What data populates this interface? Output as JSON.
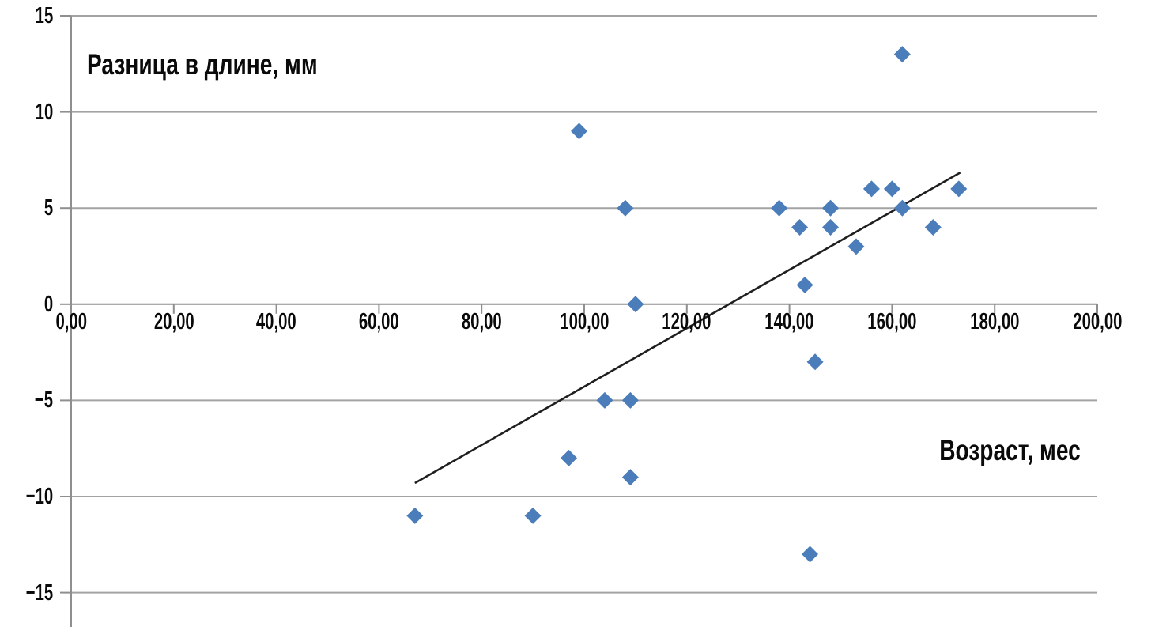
{
  "chart_data": {
    "type": "scatter",
    "y_axis_label": "Разница в длине, мм",
    "x_axis_label": "Возраст, мес",
    "xlim": [
      0,
      200
    ],
    "ylim": [
      -15,
      15
    ],
    "x_tick_values": [
      0,
      20,
      40,
      60,
      80,
      100,
      120,
      140,
      160,
      180,
      200
    ],
    "x_tick_labels": [
      "0,00",
      "20,00",
      "40,00",
      "60,00",
      "80,00",
      "100,00",
      "120,00",
      "140,00",
      "160,00",
      "180,00",
      "200,00"
    ],
    "y_tick_values": [
      15,
      10,
      5,
      0,
      -5,
      -10,
      -15
    ],
    "y_tick_labels": [
      "15",
      "10",
      "5",
      "0",
      "−5",
      "−10",
      "−15"
    ],
    "grid": "horizontal",
    "legend": "none",
    "marker": {
      "shape": "diamond",
      "size": 21
    },
    "series": [
      {
        "name": "data-points",
        "color": "#4A7DBA",
        "points": [
          [
            67,
            -11
          ],
          [
            90,
            -11
          ],
          [
            97,
            -8
          ],
          [
            99,
            9
          ],
          [
            104,
            -5
          ],
          [
            108,
            5
          ],
          [
            109,
            -5
          ],
          [
            109,
            -9
          ],
          [
            110,
            0
          ],
          [
            138,
            5
          ],
          [
            142,
            4
          ],
          [
            143,
            1
          ],
          [
            144,
            -13
          ],
          [
            145,
            -3
          ],
          [
            148,
            4
          ],
          [
            148,
            5
          ],
          [
            153,
            3
          ],
          [
            156,
            6
          ],
          [
            160,
            6
          ],
          [
            162,
            5
          ],
          [
            162,
            13
          ],
          [
            168,
            4
          ],
          [
            173,
            6
          ]
        ]
      }
    ],
    "trendline": {
      "type": "linear",
      "x_start": 67,
      "y_start": -9.3,
      "x_end": 173.3,
      "y_end": 6.85,
      "color": "#1F1F1F"
    },
    "colors": {
      "background": "#FFFFFF",
      "grid": "#A3A3A3",
      "axis": "#8F8F8F",
      "text": "#000000"
    }
  }
}
